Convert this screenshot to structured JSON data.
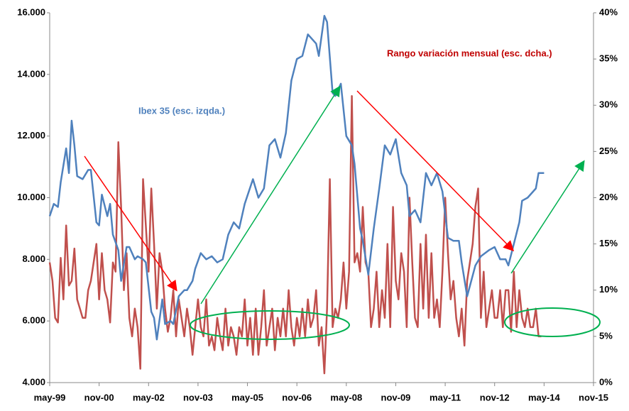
{
  "chart_data": {
    "type": "line",
    "annotations": [
      "Ibex 35 (esc. izqda.)",
      "Rango variación mensual (esc. dcha.)"
    ],
    "xlim": [
      0,
      198
    ],
    "xticks": [
      {
        "value": 0,
        "label": "may-99"
      },
      {
        "value": 18,
        "label": "nov-00"
      },
      {
        "value": 36,
        "label": "may-02"
      },
      {
        "value": 54,
        "label": "nov-03"
      },
      {
        "value": 72,
        "label": "may-05"
      },
      {
        "value": 90,
        "label": "nov-06"
      },
      {
        "value": 108,
        "label": "may-08"
      },
      {
        "value": 126,
        "label": "nov-09"
      },
      {
        "value": 144,
        "label": "may-11"
      },
      {
        "value": 162,
        "label": "nov-12"
      },
      {
        "value": 180,
        "label": "may-14"
      },
      {
        "value": 198,
        "label": "nov-15"
      }
    ],
    "ylim": [
      4000,
      16000
    ],
    "yticks": [
      {
        "value": 4000,
        "label": "4.000"
      },
      {
        "value": 6000,
        "label": "6.000"
      },
      {
        "value": 8000,
        "label": "8.000"
      },
      {
        "value": 10000,
        "label": "10.000"
      },
      {
        "value": 12000,
        "label": "12.000"
      },
      {
        "value": 14000,
        "label": "14.000"
      },
      {
        "value": 16000,
        "label": "16.000"
      }
    ],
    "y2lim": [
      0,
      40
    ],
    "y2ticks": [
      {
        "value": 0,
        "label": "0%"
      },
      {
        "value": 5,
        "label": "5%"
      },
      {
        "value": 10,
        "label": "10%"
      },
      {
        "value": 15,
        "label": "15%"
      },
      {
        "value": 20,
        "label": "20%"
      },
      {
        "value": 25,
        "label": "25%"
      },
      {
        "value": 30,
        "label": "30%"
      },
      {
        "value": 35,
        "label": "35%"
      },
      {
        "value": 40,
        "label": "40%"
      }
    ],
    "series": [
      {
        "name": "Ibex 35",
        "color": "#4f81bd",
        "axis": "y",
        "x": [
          0,
          1.5,
          3,
          4,
          6,
          7,
          8,
          9,
          10,
          12,
          14,
          15,
          17,
          18,
          19,
          21,
          22,
          23,
          25,
          26,
          28,
          29,
          31,
          32,
          34,
          35,
          37,
          38,
          39,
          41,
          42,
          44,
          45,
          47,
          49,
          50,
          52,
          53,
          55,
          57,
          59,
          61,
          63,
          65,
          67,
          69,
          71,
          74,
          76,
          78,
          80,
          82,
          84,
          86,
          88,
          90,
          92,
          94,
          97,
          98,
          100,
          101,
          103,
          104,
          106,
          108,
          110,
          111,
          113,
          114,
          116,
          118,
          120,
          122,
          124,
          126,
          128,
          130,
          131,
          133,
          135,
          137,
          139,
          141,
          143,
          145,
          147,
          149,
          150,
          152,
          155,
          157,
          160,
          162,
          164,
          166,
          167,
          169,
          171,
          172,
          174,
          177,
          178,
          180
        ],
        "values": [
          9400,
          9800,
          9700,
          10500,
          11600,
          10800,
          12500,
          11700,
          10700,
          10600,
          10900,
          10900,
          9200,
          9100,
          10100,
          9400,
          9800,
          8800,
          8300,
          7300,
          8400,
          8400,
          8000,
          8100,
          8000,
          7900,
          6300,
          6100,
          5400,
          6700,
          5900,
          6000,
          5900,
          6800,
          7000,
          7000,
          7300,
          7700,
          8200,
          8000,
          8100,
          7900,
          8000,
          8800,
          9200,
          9000,
          9800,
          10600,
          10000,
          10300,
          11700,
          11900,
          11300,
          12100,
          13800,
          14500,
          14600,
          15300,
          15000,
          14600,
          15900,
          15700,
          13400,
          13300,
          13700,
          12000,
          11700,
          11100,
          9000,
          8600,
          7500,
          9000,
          10300,
          11700,
          11400,
          11900,
          10800,
          10400,
          9400,
          9600,
          9200,
          10800,
          10400,
          10800,
          10200,
          8700,
          8600,
          8600,
          7900,
          6800,
          7800,
          8100,
          8300,
          8400,
          8000,
          8000,
          7800,
          8500,
          9200,
          9900,
          10000,
          10300,
          10800,
          10800
        ]
      },
      {
        "name": "Rango variación mensual",
        "color": "#c0504d",
        "axis": "y2",
        "x": [
          0,
          1,
          2,
          3,
          4,
          5,
          6,
          7,
          8,
          9,
          10,
          11,
          12,
          13,
          14,
          15,
          16,
          17,
          18,
          19,
          20,
          21,
          22,
          23,
          24,
          25,
          26,
          27,
          28,
          29,
          30,
          31,
          32,
          33,
          34,
          35,
          36,
          37,
          38,
          39,
          40,
          41,
          42,
          43,
          44,
          45,
          46,
          47,
          48,
          49,
          50,
          51,
          52,
          53,
          54,
          55,
          56,
          57,
          58,
          59,
          60,
          61,
          62,
          63,
          64,
          65,
          66,
          67,
          68,
          69,
          70,
          71,
          72,
          73,
          74,
          75,
          76,
          77,
          78,
          79,
          80,
          81,
          82,
          83,
          84,
          85,
          86,
          87,
          88,
          89,
          90,
          91,
          92,
          93,
          94,
          95,
          96,
          97,
          98,
          99,
          100,
          101,
          102,
          103,
          104,
          105,
          106,
          107,
          108,
          109,
          110,
          111,
          112,
          113,
          114,
          115,
          116,
          117,
          118,
          119,
          120,
          121,
          122,
          123,
          124,
          125,
          126,
          127,
          128,
          129,
          130,
          131,
          132,
          133,
          134,
          135,
          136,
          137,
          138,
          139,
          140,
          141,
          142,
          143,
          144,
          145,
          146,
          147,
          148,
          149,
          150,
          151,
          152,
          153,
          154,
          155,
          156,
          157,
          158,
          159,
          160,
          161,
          162,
          163,
          164,
          165,
          166,
          167,
          168,
          169,
          170,
          171,
          172,
          173,
          174,
          175,
          176,
          177,
          178,
          179
        ],
        "values": [
          13,
          11,
          7,
          6.5,
          13.5,
          9,
          17,
          10.5,
          11,
          14.5,
          9,
          8,
          7,
          7,
          10,
          11,
          13,
          15,
          9,
          14,
          10,
          9,
          6.5,
          13,
          12,
          26,
          19,
          10,
          14,
          7,
          5,
          8,
          6,
          1.5,
          22,
          17,
          12,
          21,
          15,
          8,
          14,
          12,
          8,
          5.5,
          7,
          10,
          5,
          9,
          7,
          5,
          8,
          6,
          3,
          6,
          9,
          6,
          5,
          9,
          4,
          5,
          3.5,
          7,
          5,
          3.5,
          8,
          4,
          6,
          5,
          3,
          6,
          5,
          9,
          4,
          7,
          3,
          8,
          3,
          6,
          10,
          4,
          6,
          8,
          3.5,
          7,
          5,
          8,
          5,
          10,
          6,
          4,
          7,
          5,
          8,
          5,
          9,
          6,
          7,
          10,
          4,
          6,
          1,
          8,
          22,
          6,
          8,
          7,
          9,
          13,
          8,
          12,
          31,
          13,
          14,
          12,
          19,
          13,
          12,
          6,
          8,
          12,
          6,
          10,
          7,
          15,
          6,
          19,
          11,
          9,
          14,
          12,
          6,
          20,
          13,
          7,
          6,
          15,
          8,
          16,
          7,
          14,
          7,
          9,
          6,
          12,
          20,
          14,
          9,
          11,
          7,
          5,
          8,
          4,
          11,
          13,
          15,
          19,
          21,
          7,
          12,
          6,
          8,
          10,
          7,
          7,
          10,
          6,
          10,
          10,
          5.5,
          12,
          6,
          10,
          7,
          6,
          8,
          6,
          6,
          8,
          5,
          5
        ]
      }
    ]
  }
}
